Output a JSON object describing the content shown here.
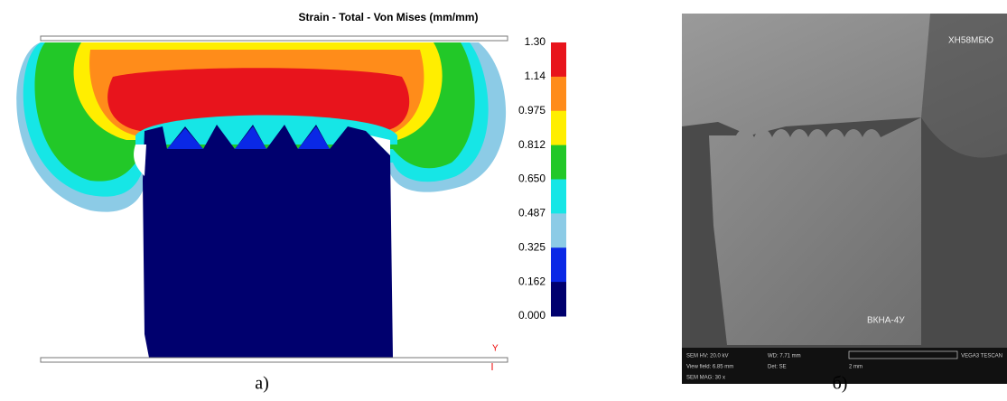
{
  "legend": {
    "title": "Strain - Total - Von Mises (mm/mm)",
    "labels": [
      "1.30",
      "1.14",
      "0.975",
      "0.812",
      "0.650",
      "0.487",
      "0.325",
      "0.162",
      "0.000"
    ],
    "colors": [
      "#e8141c",
      "#ff8c1a",
      "#ffee00",
      "#22c828",
      "#16e6e6",
      "#8ccbe6",
      "#0a28e6",
      "#00006e"
    ]
  },
  "panel_a": {
    "axis_label": "Y",
    "caption": "а)"
  },
  "panel_b": {
    "top_label": "ХН58МБЮ",
    "bottom_label": "ВКНА-4У",
    "caption": "б)",
    "info": [
      "SEM HV: 20.0 kV",
      "WD: 7.71 mm",
      "VEGA3 TESCAN",
      "View field: 6.85 mm",
      "Det: SE",
      "2 mm",
      "SEM MAG: 30 x"
    ]
  }
}
